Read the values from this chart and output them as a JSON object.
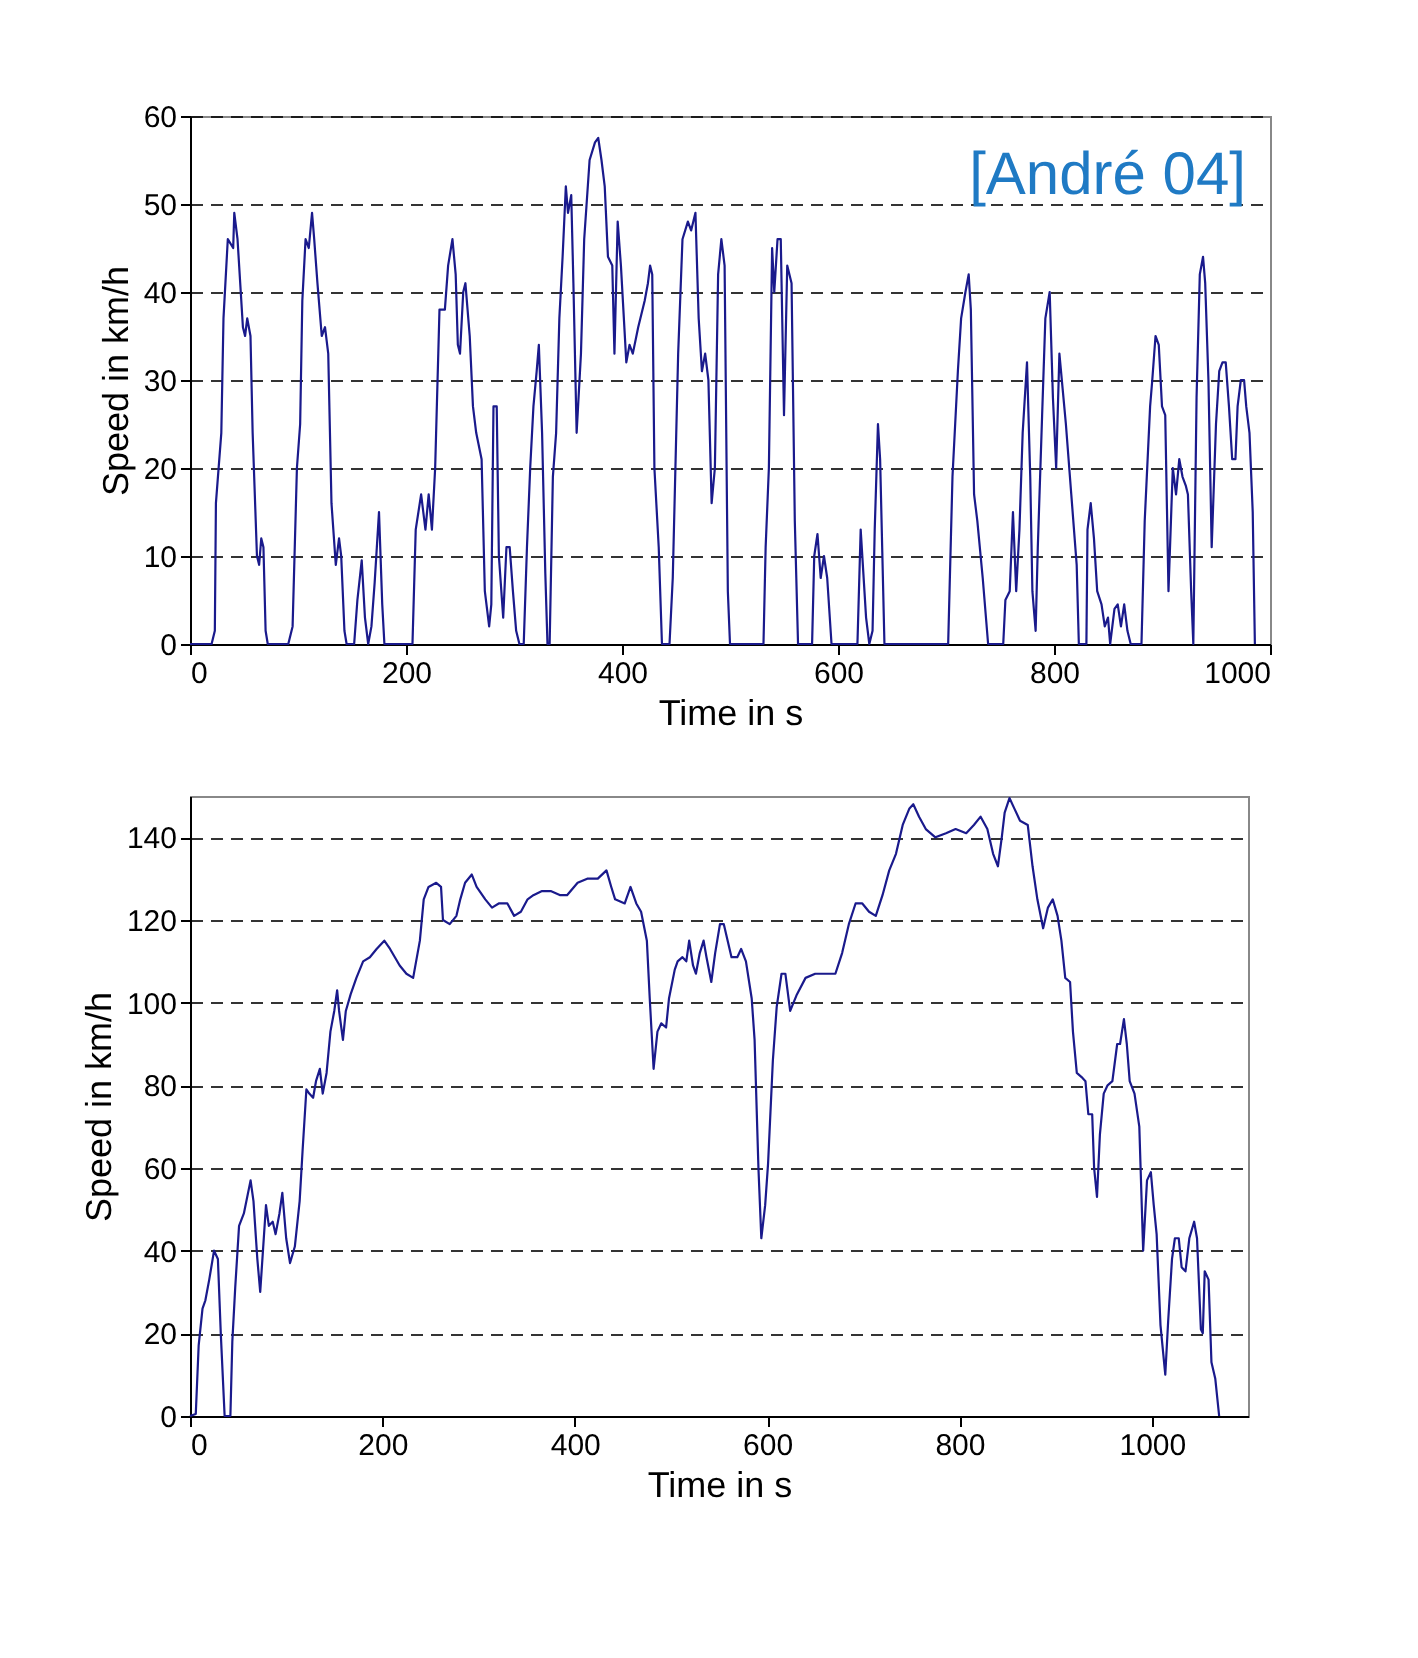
{
  "chart_data": [
    {
      "type": "line",
      "xlabel": "Time in s",
      "ylabel": "Speed in km/h",
      "xlim": [
        0,
        1000
      ],
      "ylim": [
        0,
        60
      ],
      "xticks": [
        0,
        200,
        400,
        600,
        800,
        1000
      ],
      "yticks": [
        0,
        10,
        20,
        30,
        40,
        50,
        60
      ],
      "grid": "y",
      "annotations": [
        "[André 04]"
      ],
      "x": [
        0,
        20,
        23,
        24,
        29,
        31,
        35,
        40,
        41,
        44,
        49,
        51,
        53,
        56,
        58,
        62,
        64,
        66,
        68,
        70,
        72,
        91,
        95,
        99,
        102,
        104,
        107,
        110,
        113,
        115,
        118,
        122,
        125,
        128,
        131,
        135,
        138,
        140,
        143,
        145,
        152,
        155,
        159,
        162,
        165,
        168,
        171,
        175,
        178,
        180,
        206,
        209,
        214,
        218,
        221,
        224,
        227,
        231,
        236,
        239,
        243,
        246,
        248,
        250,
        253,
        255,
        259,
        262,
        265,
        270,
        273,
        277,
        279,
        281,
        284,
        286,
        290,
        293,
        296,
        299,
        302,
        305,
        309,
        312,
        315,
        318,
        321,
        323,
        326,
        329,
        331,
        333,
        336,
        339,
        342,
        345,
        348,
        350,
        353,
        355,
        358,
        362,
        365,
        370,
        375,
        378,
        381,
        384,
        387,
        391,
        393,
        396,
        399,
        404,
        407,
        410,
        415,
        421,
        424,
        426,
        428,
        430,
        434,
        437,
        444,
        447,
        452,
        456,
        461,
        464,
        468,
        471,
        474,
        477,
        480,
        483,
        486,
        489,
        492,
        495,
        498,
        500,
        531,
        533,
        536,
        539,
        541,
        544,
        547,
        550,
        553,
        557,
        560,
        563,
        576,
        578,
        581,
        584,
        587,
        590,
        594,
        618,
        621,
        626,
        629,
        632,
        634,
        637,
        639,
        643,
        702,
        706,
        711,
        714,
        718,
        721,
        723,
        726,
        729,
        734,
        739,
        753,
        755,
        759,
        762,
        765,
        768,
        771,
        775,
        778,
        780,
        783,
        785,
        789,
        792,
        796,
        799,
        802,
        805,
        808,
        811,
        816,
        821,
        823,
        830,
        831,
        834,
        837,
        840,
        844,
        847,
        850,
        852,
        856,
        859,
        862,
        865,
        868,
        871,
        881,
        884,
        889,
        891,
        894,
        897,
        900,
        903,
        906,
        910,
        913,
        916,
        919,
        922,
        924,
        927,
        929,
        932,
        935,
        938,
        940,
        943,
        946,
        950,
        953,
        956,
        959,
        962,
        965,
        968,
        970,
        973,
        976,
        978,
        981,
        984,
        986
      ],
      "series": [
        {
          "color": "#1a1a8c",
          "values": [
            0,
            0,
            1.5,
            16,
            24,
            37,
            46,
            45,
            49,
            46,
            36,
            35,
            37,
            35,
            24,
            10,
            9,
            12,
            11,
            1.5,
            0,
            0,
            2,
            20,
            25,
            39,
            46,
            45,
            49,
            46,
            41,
            35,
            36,
            33,
            16,
            9,
            12,
            10,
            1.5,
            0,
            0,
            5,
            9.5,
            3,
            0,
            2,
            7,
            15,
            4.5,
            0,
            0,
            13,
            17,
            13,
            17,
            13,
            20,
            38,
            38,
            43,
            46,
            42,
            34,
            33,
            40,
            41,
            35,
            27,
            24,
            21,
            6,
            2,
            4.5,
            27,
            27,
            10,
            3,
            11,
            11,
            6,
            1.5,
            0,
            0,
            11,
            20,
            27,
            31,
            34,
            24,
            8,
            0,
            0,
            19,
            24,
            37,
            44,
            52,
            49,
            51,
            41,
            24,
            33,
            46,
            55,
            57,
            57.5,
            55,
            52,
            44,
            43,
            33,
            48,
            43,
            32,
            34,
            33,
            36,
            39,
            41,
            43,
            42,
            20,
            11,
            0,
            0,
            7.5,
            33,
            46,
            48,
            47,
            49,
            37,
            31,
            33,
            30,
            16,
            20,
            42,
            46,
            43,
            6,
            0,
            0,
            11,
            20,
            45,
            40,
            46,
            46,
            26,
            43,
            41,
            14,
            0,
            0,
            10,
            12.5,
            7.5,
            10,
            7.5,
            0,
            0,
            13,
            3,
            0,
            1.5,
            13,
            25,
            21,
            0,
            0,
            19,
            31,
            37,
            40,
            42,
            38,
            17,
            14,
            7.5,
            0,
            0,
            5,
            6,
            15,
            6,
            13,
            24,
            32,
            19,
            6,
            1.5,
            11,
            26,
            37,
            40,
            28,
            20,
            33,
            29,
            25,
            17,
            9,
            0,
            0,
            13,
            16,
            12,
            6,
            4.5,
            2,
            3,
            0,
            4,
            4.5,
            2,
            4.5,
            1.5,
            0,
            0,
            14,
            27,
            30,
            35,
            34,
            27,
            26,
            6,
            20,
            17,
            21,
            19,
            18,
            17,
            6,
            0,
            28,
            42,
            44,
            41,
            30,
            11,
            25,
            31,
            32,
            32,
            27,
            21,
            21,
            27,
            30,
            30,
            27,
            24,
            15,
            0
          ]
        }
      ]
    },
    {
      "type": "line",
      "xlabel": "Time in s",
      "ylabel": "Speed in km/h",
      "xlim": [
        0,
        1100
      ],
      "ylim": [
        0,
        150
      ],
      "xticks": [
        0,
        200,
        400,
        600,
        800,
        1000
      ],
      "yticks": [
        0,
        20,
        40,
        60,
        80,
        100,
        120,
        140
      ],
      "grid": "y",
      "x": [
        0,
        6,
        9,
        13,
        16,
        20,
        25,
        29,
        32,
        36,
        42,
        44,
        47,
        51,
        56,
        63,
        66,
        70,
        73,
        79,
        82,
        86,
        89,
        93,
        96,
        100,
        104,
        109,
        114,
        117,
        121,
        124,
        128,
        131,
        135,
        138,
        142,
        146,
        150,
        153,
        155,
        159,
        162,
        167,
        173,
        180,
        187,
        194,
        202,
        208,
        213,
        218,
        225,
        232,
        239,
        243,
        248,
        256,
        261,
        263,
        270,
        277,
        281,
        286,
        293,
        298,
        307,
        314,
        321,
        330,
        337,
        344,
        351,
        357,
        366,
        375,
        385,
        392,
        403,
        413,
        424,
        433,
        438,
        442,
        452,
        458,
        464,
        469,
        475,
        478,
        482,
        486,
        490,
        495,
        498,
        504,
        507,
        512,
        516,
        519,
        523,
        526,
        530,
        534,
        537,
        542,
        546,
        551,
        555,
        559,
        563,
        569,
        573,
        578,
        584,
        587,
        591,
        594,
        598,
        601,
        606,
        610,
        615,
        619,
        624,
        631,
        640,
        650,
        661,
        671,
        678,
        685,
        692,
        699,
        706,
        713,
        720,
        727,
        734,
        741,
        748,
        752,
        758,
        765,
        775,
        786,
        796,
        807,
        815,
        822,
        829,
        835,
        840,
        844,
        847,
        852,
        857,
        863,
        871,
        876,
        881,
        887,
        892,
        897,
        902,
        906,
        910,
        915,
        918,
        922,
        927,
        931,
        934,
        938,
        940,
        943,
        946,
        950,
        954,
        959,
        964,
        967,
        971,
        974,
        977,
        982,
        987,
        991,
        995,
        999,
        1002,
        1005,
        1009,
        1014,
        1017,
        1021,
        1024,
        1028,
        1031,
        1035,
        1039,
        1044,
        1047,
        1051,
        1053,
        1055,
        1059,
        1062,
        1066,
        1070
      ],
      "series": [
        {
          "color": "#1a1a8c",
          "values": [
            0,
            0.5,
            17,
            26,
            28,
            33,
            40,
            38,
            20,
            0,
            0,
            18,
            31,
            46,
            49,
            57,
            52,
            38,
            30,
            51,
            46,
            47,
            44,
            49,
            54,
            43,
            37,
            41,
            52,
            64,
            79,
            78,
            77,
            81,
            84,
            78,
            83,
            93,
            98,
            103,
            98,
            91,
            98,
            102,
            106,
            110,
            111,
            113,
            115,
            113,
            111,
            109,
            107,
            106,
            115,
            125,
            128,
            129,
            128,
            120,
            119,
            121,
            125,
            129,
            131,
            128,
            125,
            123,
            124,
            124,
            121,
            122,
            125,
            126,
            127,
            127,
            126,
            126,
            129,
            130,
            130,
            132,
            128,
            125,
            124,
            128,
            124,
            122,
            115,
            101,
            84,
            93,
            95,
            94,
            101,
            108,
            110,
            111,
            110,
            115,
            109,
            107,
            112,
            115,
            111,
            105,
            112,
            119,
            119,
            115,
            111,
            111,
            113,
            110,
            101,
            91,
            60,
            43,
            51,
            61,
            86,
            99,
            107,
            107,
            98,
            102,
            106,
            107,
            107,
            107,
            112,
            119,
            124,
            124,
            122,
            121,
            126,
            132,
            136,
            143,
            147,
            148,
            145,
            142,
            140,
            141,
            142,
            141,
            143,
            145,
            142,
            136,
            133,
            140,
            146,
            149.5,
            147,
            144,
            143,
            133,
            125,
            118,
            123,
            125,
            121,
            115,
            106,
            105,
            93,
            83,
            82,
            81,
            73,
            73,
            60,
            53,
            68,
            78,
            80,
            81,
            90,
            90,
            96,
            90,
            81,
            78,
            70,
            40,
            57,
            59,
            51,
            44,
            22,
            10,
            23,
            38,
            43,
            43,
            36,
            35,
            43,
            47,
            43,
            21,
            20,
            35,
            33,
            13,
            9,
            0
          ]
        }
      ]
    }
  ]
}
